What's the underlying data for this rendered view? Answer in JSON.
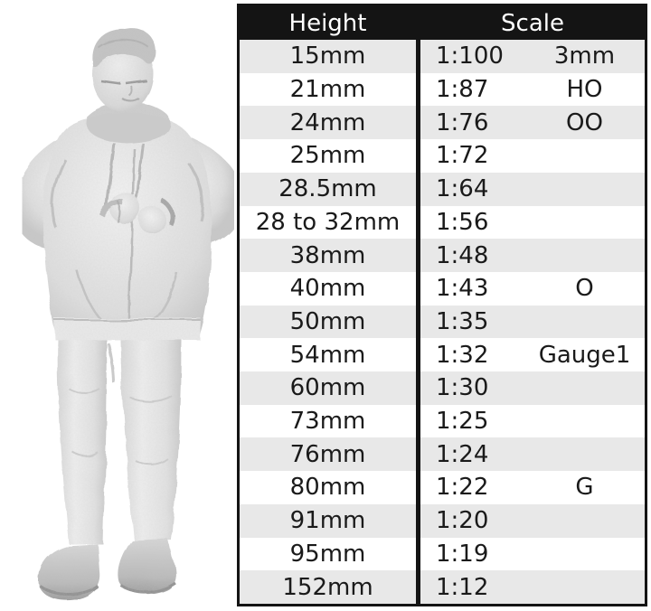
{
  "figure": {
    "name": "3d-scan-man-checking-watch"
  },
  "chart_data": {
    "type": "table",
    "columns": [
      "Height",
      "Scale"
    ],
    "rows": [
      {
        "height": "15mm",
        "ratio": "1:100",
        "gauge": "3mm"
      },
      {
        "height": "21mm",
        "ratio": "1:87",
        "gauge": "HO"
      },
      {
        "height": "24mm",
        "ratio": "1:76",
        "gauge": "OO"
      },
      {
        "height": "25mm",
        "ratio": "1:72",
        "gauge": ""
      },
      {
        "height": "28.5mm",
        "ratio": "1:64",
        "gauge": ""
      },
      {
        "height": "28 to 32mm",
        "ratio": "1:56",
        "gauge": ""
      },
      {
        "height": "38mm",
        "ratio": "1:48",
        "gauge": ""
      },
      {
        "height": "40mm",
        "ratio": "1:43",
        "gauge": "O"
      },
      {
        "height": "50mm",
        "ratio": "1:35",
        "gauge": ""
      },
      {
        "height": "54mm",
        "ratio": "1:32",
        "gauge": "Gauge1"
      },
      {
        "height": "60mm",
        "ratio": "1:30",
        "gauge": ""
      },
      {
        "height": "73mm",
        "ratio": "1:25",
        "gauge": ""
      },
      {
        "height": "76mm",
        "ratio": "1:24",
        "gauge": ""
      },
      {
        "height": "80mm",
        "ratio": "1:22",
        "gauge": "G"
      },
      {
        "height": "91mm",
        "ratio": "1:20",
        "gauge": ""
      },
      {
        "height": "95mm",
        "ratio": "1:19",
        "gauge": ""
      },
      {
        "height": "152mm",
        "ratio": "1:12",
        "gauge": ""
      }
    ],
    "colors": {
      "header_bg": "#141414",
      "header_text": "#ffffff",
      "row_bg": "#ffffff",
      "row_alt_bg": "#e8e8e8",
      "border": "#141414",
      "text": "#1a1a1a"
    }
  }
}
